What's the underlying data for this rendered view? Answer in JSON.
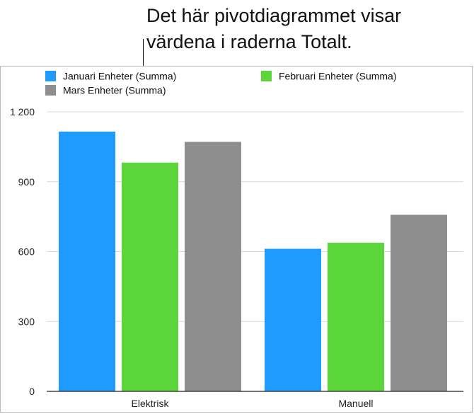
{
  "callout": {
    "lines": [
      "Det här pivotdiagrammet visar",
      "värdena i raderna Totalt."
    ]
  },
  "colors": {
    "januari": "#1f9bff",
    "februari": "#5cd53b",
    "mars": "#8e8e8e",
    "grid": "#d9d9d9",
    "axis": "#222222"
  },
  "chart_data": {
    "type": "bar",
    "categories": [
      "Elektrisk",
      "Manuell"
    ],
    "series": [
      {
        "name": "Januari Enheter (Summa)",
        "values": [
          1115,
          612
        ]
      },
      {
        "name": "Februari Enheter (Summa)",
        "values": [
          982,
          638
        ]
      },
      {
        "name": "Mars Enheter (Summa)",
        "values": [
          1071,
          758
        ]
      }
    ],
    "yticks": [
      "0",
      "300",
      "600",
      "900",
      "1 200"
    ],
    "ytick_values": [
      0,
      300,
      600,
      900,
      1200
    ],
    "ylim": [
      0,
      1200
    ],
    "legend_position": "top-left",
    "grid": true
  }
}
